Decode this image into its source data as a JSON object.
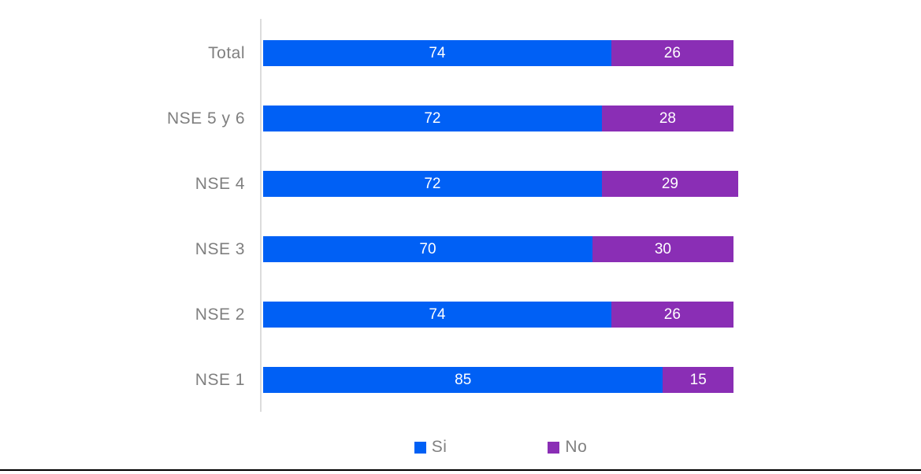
{
  "chart_data": {
    "type": "bar",
    "orientation": "horizontal-stacked",
    "title": "",
    "xlabel": "",
    "ylabel": "",
    "xlim": [
      0,
      100
    ],
    "grid": false,
    "legend_position": "bottom",
    "categories": [
      "Total",
      "NSE 5 y 6",
      "NSE 4",
      "NSE 3",
      "NSE 2",
      "NSE 1"
    ],
    "series": [
      {
        "name": "Si",
        "color": "#0060f5",
        "values": [
          74,
          72,
          72,
          70,
          74,
          85
        ]
      },
      {
        "name": "No",
        "color": "#8a2eb5",
        "values": [
          26,
          28,
          29,
          30,
          26,
          15
        ]
      }
    ]
  },
  "legend": {
    "items": [
      {
        "label": "Si",
        "color": "#0060f5"
      },
      {
        "label": "No",
        "color": "#8a2eb5"
      }
    ]
  },
  "colors": {
    "category_label": "#7f7f7f",
    "axis_line": "#dcdcdc",
    "value_text": "#ffffff",
    "bottom_rule": "#000000",
    "background": "#ffffff"
  }
}
